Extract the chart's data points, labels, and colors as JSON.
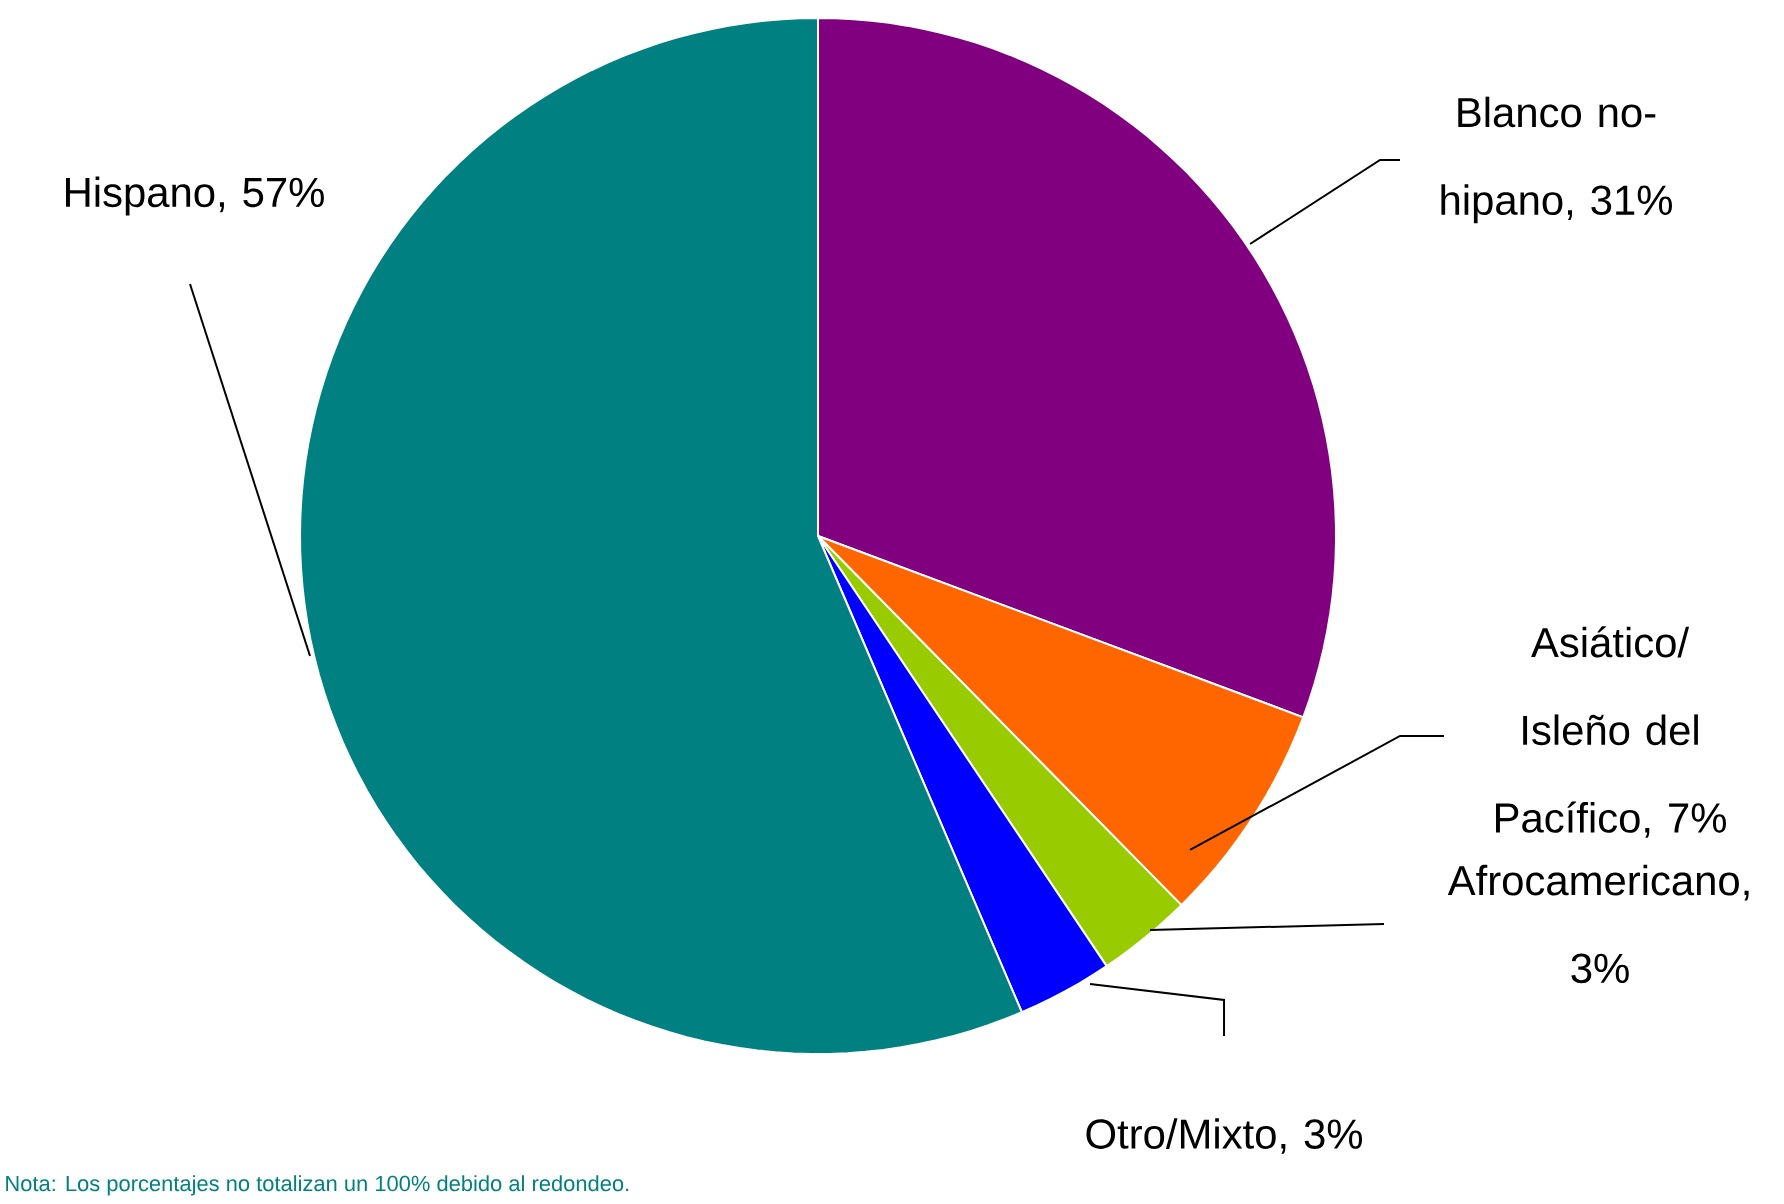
{
  "chart_data": {
    "type": "pie",
    "categories": [
      "Blanco no-hipano, 31%",
      "Asiático/ Isleño del Pacífico, 7%",
      "Afrocamericano, 3%",
      "Otro/Mixto, 3%",
      "Hispano, 57%"
    ],
    "values": [
      31,
      7,
      3,
      3,
      57
    ],
    "colors": [
      "#800080",
      "#ff6600",
      "#99cc00",
      "#0000ff",
      "#008080"
    ],
    "annotations": [
      "Nota: Los porcentajes no totalizan un 100% debido al redondeo."
    ]
  }
}
